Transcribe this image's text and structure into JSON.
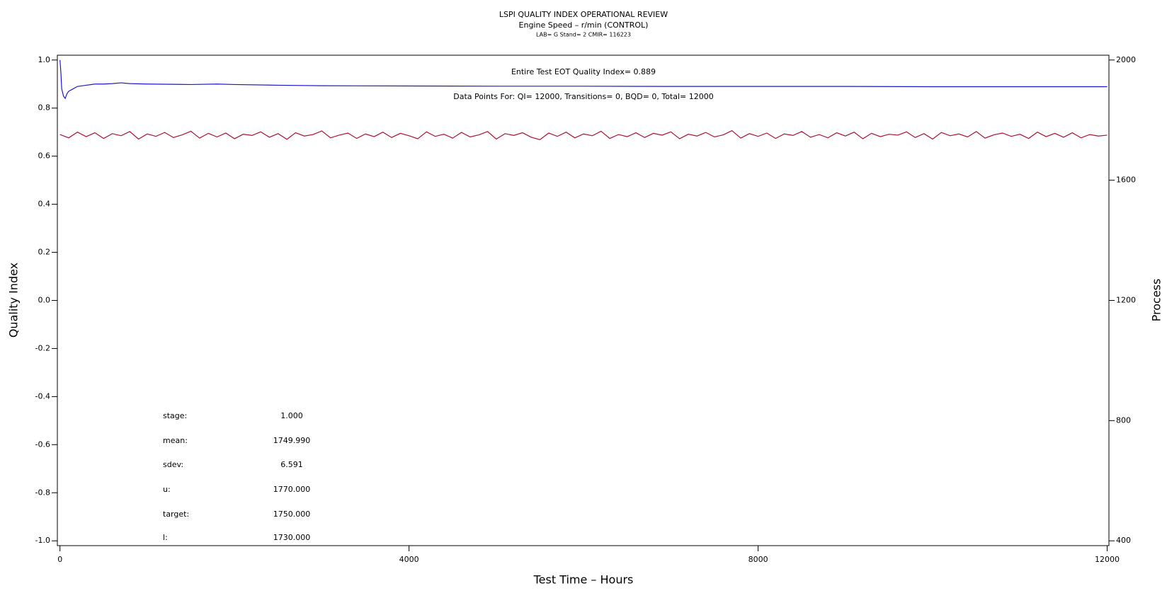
{
  "chart_data": {
    "type": "line",
    "title": "LSPI QUALITY INDEX OPERATIONAL REVIEW",
    "subtitle": "Engine Speed – r/min (CONTROL)",
    "subtitle2": "LAB= G Stand= 2 CMIR= 116223",
    "xlabel": "Test Time – Hours",
    "ylabel": "Quality Index",
    "y2label": "Process",
    "annotations": [
      "Entire Test EOT Quality Index=   0.889",
      "Data Points For: QI= 12000, Transitions=     0, BQD=     0, Total= 12000"
    ],
    "stats": [
      {
        "label": "stage:",
        "value": "1.000"
      },
      {
        "label": "mean:",
        "value": "1749.990"
      },
      {
        "label": "sdev:",
        "value": "6.591"
      },
      {
        "label": "u:",
        "value": "1770.000"
      },
      {
        "label": "target:",
        "value": "1750.000"
      },
      {
        "label": "l:",
        "value": "1730.000"
      }
    ],
    "xlim": [
      -30,
      12020
    ],
    "xticks": [
      0,
      4000,
      8000,
      12000
    ],
    "ylim": [
      -1.02,
      1.02
    ],
    "yticks": [
      {
        "value": 1,
        "label": "1.0"
      },
      0.8,
      0.6,
      0.4,
      0.2,
      {
        "value": 0,
        "label": "0.0"
      },
      -0.2,
      -0.4,
      -0.6,
      -0.8,
      {
        "value": -1,
        "label": "-1.0"
      }
    ],
    "y2lim": [
      384,
      2016
    ],
    "y2ticks": [
      400,
      800,
      1200,
      1600,
      2000
    ],
    "series": [
      {
        "color": "#1a1acc",
        "axis": "y",
        "x": [
          0,
          10,
          20,
          40,
          60,
          80,
          100,
          150,
          200,
          300,
          400,
          500,
          600,
          700,
          800,
          1000,
          1500,
          1800,
          2000,
          2500,
          3000,
          4000,
          5000,
          6000,
          7000,
          8000,
          9000,
          10000,
          11000,
          12000
        ],
        "values": [
          1.0,
          0.95,
          0.88,
          0.85,
          0.84,
          0.86,
          0.87,
          0.88,
          0.89,
          0.895,
          0.9,
          0.9,
          0.902,
          0.905,
          0.902,
          0.9,
          0.898,
          0.9,
          0.898,
          0.895,
          0.893,
          0.892,
          0.891,
          0.891,
          0.89,
          0.89,
          0.89,
          0.889,
          0.889,
          0.889
        ]
      },
      {
        "color": "#b01030",
        "axis": "y2",
        "x": [
          0,
          100,
          200,
          300,
          400,
          500,
          600,
          700,
          800,
          900,
          1000,
          1100,
          1200,
          1300,
          1400,
          1500,
          1600,
          1700,
          1800,
          1900,
          2000,
          2100,
          2200,
          2300,
          2400,
          2500,
          2600,
          2700,
          2800,
          2900,
          3000,
          3100,
          3200,
          3300,
          3400,
          3500,
          3600,
          3700,
          3800,
          3900,
          4000,
          4100,
          4200,
          4300,
          4400,
          4500,
          4600,
          4700,
          4800,
          4900,
          5000,
          5100,
          5200,
          5300,
          5400,
          5500,
          5600,
          5700,
          5800,
          5900,
          6000,
          6100,
          6200,
          6300,
          6400,
          6500,
          6600,
          6700,
          6800,
          6900,
          7000,
          7100,
          7200,
          7300,
          7400,
          7500,
          7600,
          7700,
          7800,
          7900,
          8000,
          8100,
          8200,
          8300,
          8400,
          8500,
          8600,
          8700,
          8800,
          8900,
          9000,
          9100,
          9200,
          9300,
          9400,
          9500,
          9600,
          9700,
          9800,
          9900,
          10000,
          10100,
          10200,
          10300,
          10400,
          10500,
          10600,
          10700,
          10800,
          10900,
          11000,
          11100,
          11200,
          11300,
          11400,
          11500,
          11600,
          11700,
          11800,
          11900,
          12000
        ],
        "values": [
          1752,
          1741,
          1760,
          1745,
          1758,
          1739,
          1755,
          1748,
          1762,
          1737,
          1754,
          1746,
          1759,
          1742,
          1751,
          1763,
          1740,
          1756,
          1744,
          1757,
          1738,
          1753,
          1749,
          1761,
          1743,
          1755,
          1736,
          1758,
          1747,
          1752,
          1764,
          1741,
          1750,
          1757,
          1739,
          1754,
          1745,
          1760,
          1742,
          1756,
          1748,
          1738,
          1761,
          1746,
          1753,
          1740,
          1759,
          1744,
          1751,
          1762,
          1737,
          1755,
          1749,
          1758,
          1743,
          1735,
          1757,
          1746,
          1760,
          1741,
          1754,
          1748,
          1763,
          1739,
          1752,
          1745,
          1758,
          1742,
          1756,
          1750,
          1761,
          1738,
          1753,
          1747,
          1759,
          1744,
          1751,
          1765,
          1740,
          1755,
          1746,
          1757,
          1739,
          1754,
          1749,
          1762,
          1743,
          1752,
          1741,
          1758,
          1747,
          1760,
          1738,
          1756,
          1745,
          1753,
          1750,
          1761,
          1742,
          1755,
          1737,
          1759,
          1748,
          1754,
          1744,
          1762,
          1740,
          1751,
          1757,
          1746,
          1753,
          1739,
          1760,
          1745,
          1756,
          1743,
          1758,
          1741,
          1752,
          1747,
          1750
        ]
      }
    ]
  }
}
